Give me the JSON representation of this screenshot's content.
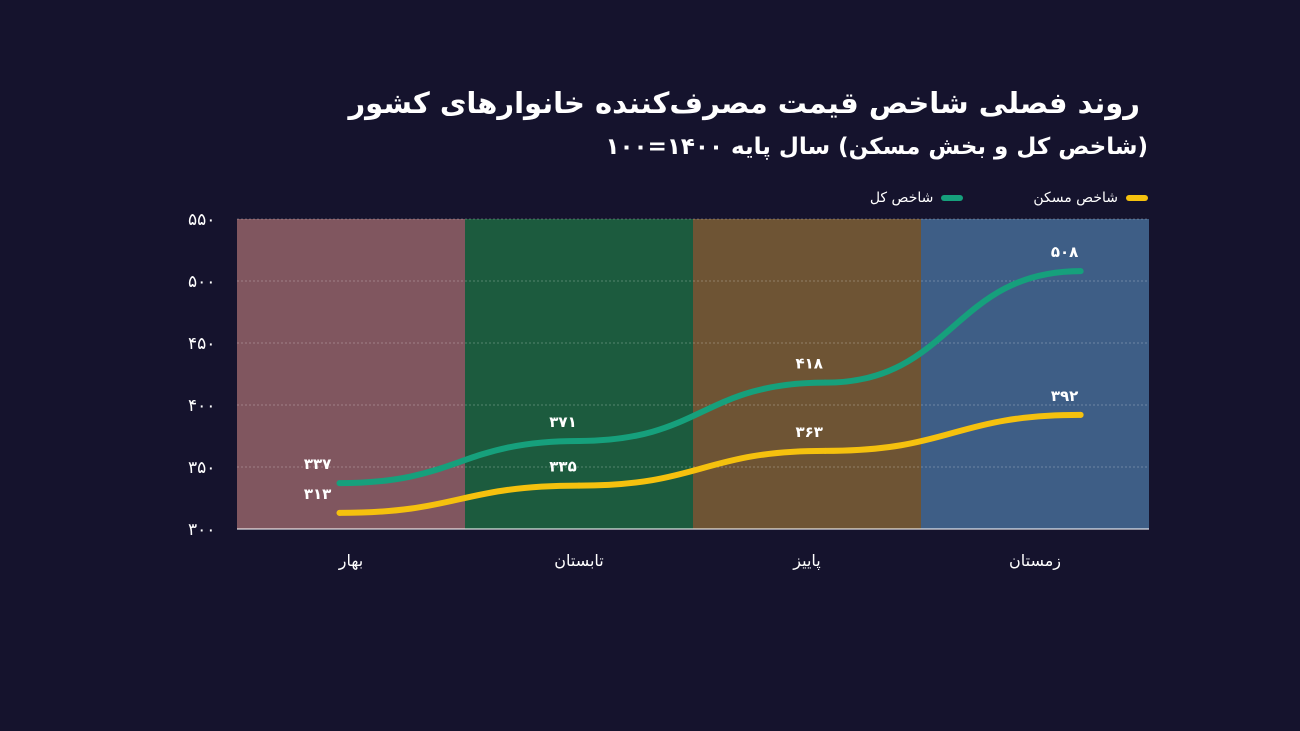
{
  "title": "روند فصلی شاخص قیمت مصرف‌کننده خانوارهای کشور",
  "subtitle": "(شاخص کل و بخش مسکن) سال پایه ۱۴۰۰=۱۰۰",
  "colors": {
    "background": "#15132d",
    "general_index": "#16a07c",
    "housing_index": "#f5c10e",
    "spring": "#80565f",
    "summer": "#1c5b3e",
    "autumn": "#6e5434",
    "winter": "#3e5e86"
  },
  "chart_data": {
    "type": "line",
    "categories": [
      "بهار",
      "تابستان",
      "پاییز",
      "زمستان"
    ],
    "ylim": [
      300,
      550
    ],
    "yticks": [
      300,
      350,
      400,
      450,
      500,
      550
    ],
    "ytick_labels": [
      "۳۰۰",
      "۳۵۰",
      "۴۰۰",
      "۴۵۰",
      "۵۰۰",
      "۵۵۰"
    ],
    "legend_position": "top-right",
    "grid": true,
    "series": [
      {
        "name": "شاخص کل",
        "values": [
          337,
          371,
          418,
          508
        ],
        "labels": [
          "۳۳۷",
          "۳۷۱",
          "۴۱۸",
          "۵۰۸"
        ],
        "color": "#16a07c"
      },
      {
        "name": "شاخص مسکن",
        "values": [
          313,
          335,
          363,
          392
        ],
        "labels": [
          "۳۱۳",
          "۳۳۵",
          "۳۶۳",
          "۳۹۲"
        ],
        "color": "#f5c10e"
      }
    ]
  }
}
